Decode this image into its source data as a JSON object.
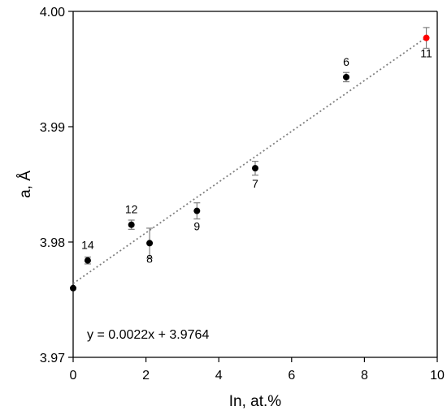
{
  "chart_data": {
    "type": "scatter",
    "title": "",
    "xlabel": "In, at.%",
    "ylabel": "a, Å",
    "xlim": [
      0,
      10
    ],
    "ylim": [
      3.97,
      4.0
    ],
    "x_ticks": [
      0,
      2,
      4,
      6,
      8,
      10
    ],
    "y_ticks": [
      3.97,
      3.98,
      3.99,
      4.0
    ],
    "x_tick_labels": [
      "0",
      "2",
      "4",
      "6",
      "8",
      "10"
    ],
    "y_tick_labels": [
      "3.97",
      "3.98",
      "3.99",
      "4.00"
    ],
    "grid": false,
    "legend": "none",
    "points": [
      {
        "x": 0.0,
        "y": 3.976,
        "err": 0.0,
        "label": "",
        "color": "#000000"
      },
      {
        "x": 0.4,
        "y": 3.9784,
        "err": 0.0003,
        "label": "14",
        "color": "#000000"
      },
      {
        "x": 1.6,
        "y": 3.9815,
        "err": 0.0004,
        "label": "12",
        "color": "#000000"
      },
      {
        "x": 2.1,
        "y": 3.9799,
        "err": 0.0013,
        "label": "8",
        "color": "#000000"
      },
      {
        "x": 3.4,
        "y": 3.9827,
        "err": 0.0007,
        "label": "9",
        "color": "#000000"
      },
      {
        "x": 5.0,
        "y": 3.9864,
        "err": 0.0006,
        "label": "7",
        "color": "#000000"
      },
      {
        "x": 7.5,
        "y": 3.9943,
        "err": 0.0004,
        "label": "6",
        "color": "#000000"
      },
      {
        "x": 9.7,
        "y": 3.9977,
        "err": 0.0009,
        "label": "11",
        "color": "#ff0000"
      }
    ],
    "trendline": {
      "slope": 0.0022,
      "intercept": 3.9764,
      "x_range": [
        0,
        9.7
      ],
      "color": "#808080",
      "style": "dotted"
    },
    "equation": "y = 0.0022x + 3.9764"
  }
}
